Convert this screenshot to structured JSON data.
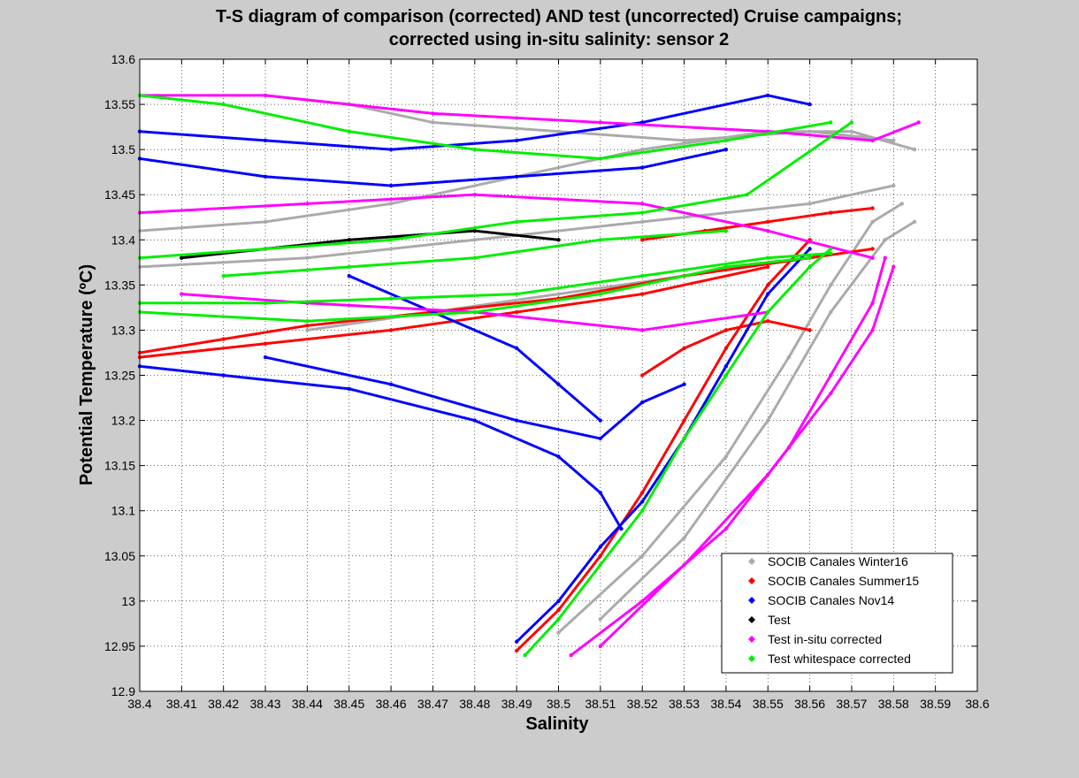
{
  "chart_data": {
    "type": "scatter",
    "title_lines": [
      "T-S diagram of comparison (corrected) AND test (uncorrected) Cruise campaigns;",
      "corrected using in-situ salinity: sensor 2"
    ],
    "xlabel": "Salinity",
    "ylabel": "Potential Temperature (ºC)",
    "xlim": [
      38.4,
      38.6
    ],
    "ylim": [
      12.9,
      13.6
    ],
    "xticks": [
      "38.4",
      "38.41",
      "38.42",
      "38.43",
      "38.44",
      "38.45",
      "38.46",
      "38.47",
      "38.48",
      "38.49",
      "38.5",
      "38.51",
      "38.52",
      "38.53",
      "38.54",
      "38.55",
      "38.56",
      "38.57",
      "38.58",
      "38.59",
      "38.6"
    ],
    "yticks": [
      "12.9",
      "12.95",
      "13",
      "13.05",
      "13.1",
      "13.15",
      "13.2",
      "13.25",
      "13.3",
      "13.35",
      "13.4",
      "13.45",
      "13.5",
      "13.55",
      "13.6"
    ],
    "grid": true,
    "legend_position": "bottom-right",
    "series": [
      {
        "name": "SOCIB Canales Winter16",
        "color": "#aaaaaa",
        "paths": [
          [
            [
              38.5,
              12.965
            ],
            [
              38.52,
              13.05
            ],
            [
              38.54,
              13.16
            ],
            [
              38.555,
              13.27
            ],
            [
              38.565,
              13.35
            ],
            [
              38.575,
              13.42
            ],
            [
              38.582,
              13.44
            ]
          ],
          [
            [
              38.51,
              12.98
            ],
            [
              38.53,
              13.07
            ],
            [
              38.55,
              13.2
            ],
            [
              38.565,
              13.32
            ],
            [
              38.578,
              13.4
            ],
            [
              38.585,
              13.42
            ]
          ],
          [
            [
              38.4,
              13.41
            ],
            [
              38.43,
              13.42
            ],
            [
              38.46,
              13.44
            ],
            [
              38.49,
              13.47
            ],
            [
              38.52,
              13.5
            ],
            [
              38.55,
              13.52
            ],
            [
              38.57,
              13.52
            ],
            [
              38.585,
              13.5
            ]
          ],
          [
            [
              38.4,
              13.37
            ],
            [
              38.44,
              13.38
            ],
            [
              38.48,
              13.4
            ],
            [
              38.52,
              13.42
            ],
            [
              38.56,
              13.44
            ],
            [
              38.58,
              13.46
            ]
          ],
          [
            [
              38.43,
              13.56
            ],
            [
              38.45,
              13.55
            ],
            [
              38.47,
              13.53
            ],
            [
              38.5,
              13.52
            ],
            [
              38.53,
              13.51
            ],
            [
              38.56,
              13.52
            ],
            [
              38.58,
              13.51
            ]
          ],
          [
            [
              38.44,
              13.3
            ],
            [
              38.47,
              13.32
            ],
            [
              38.5,
              13.34
            ],
            [
              38.53,
              13.36
            ],
            [
              38.56,
              13.38
            ]
          ]
        ]
      },
      {
        "name": "SOCIB Canales Summer15",
        "color": "#ff0000",
        "paths": [
          [
            [
              38.4,
              13.275
            ],
            [
              38.42,
              13.29
            ],
            [
              38.44,
              13.305
            ],
            [
              38.47,
              13.32
            ],
            [
              38.5,
              13.335
            ],
            [
              38.53,
              13.36
            ],
            [
              38.56,
              13.38
            ],
            [
              38.575,
              13.39
            ]
          ],
          [
            [
              38.4,
              13.27
            ],
            [
              38.43,
              13.285
            ],
            [
              38.46,
              13.3
            ],
            [
              38.49,
              13.32
            ],
            [
              38.52,
              13.34
            ],
            [
              38.55,
              13.37
            ]
          ],
          [
            [
              38.49,
              12.945
            ],
            [
              38.5,
              12.99
            ],
            [
              38.51,
              13.05
            ],
            [
              38.52,
              13.12
            ],
            [
              38.53,
              13.2
            ],
            [
              38.54,
              13.28
            ],
            [
              38.55,
              13.35
            ],
            [
              38.56,
              13.4
            ]
          ],
          [
            [
              38.52,
              13.4
            ],
            [
              38.535,
              13.41
            ],
            [
              38.55,
              13.42
            ],
            [
              38.565,
              13.43
            ],
            [
              38.575,
              13.435
            ]
          ],
          [
            [
              38.52,
              13.25
            ],
            [
              38.53,
              13.28
            ],
            [
              38.54,
              13.3
            ],
            [
              38.55,
              13.31
            ],
            [
              38.56,
              13.3
            ]
          ]
        ]
      },
      {
        "name": "SOCIB Canales Nov14",
        "color": "#0000ff",
        "paths": [
          [
            [
              38.4,
              13.52
            ],
            [
              38.43,
              13.51
            ],
            [
              38.46,
              13.5
            ],
            [
              38.49,
              13.51
            ],
            [
              38.52,
              13.53
            ],
            [
              38.55,
              13.56
            ],
            [
              38.56,
              13.55
            ]
          ],
          [
            [
              38.4,
              13.26
            ],
            [
              38.42,
              13.25
            ],
            [
              38.45,
              13.235
            ],
            [
              38.48,
              13.2
            ],
            [
              38.5,
              13.16
            ],
            [
              38.51,
              13.12
            ],
            [
              38.515,
              13.08
            ]
          ],
          [
            [
              38.49,
              12.955
            ],
            [
              38.5,
              13.0
            ],
            [
              38.51,
              13.06
            ],
            [
              38.52,
              13.11
            ],
            [
              38.53,
              13.18
            ],
            [
              38.54,
              13.26
            ],
            [
              38.55,
              13.34
            ],
            [
              38.56,
              13.39
            ]
          ],
          [
            [
              38.43,
              13.27
            ],
            [
              38.46,
              13.24
            ],
            [
              38.49,
              13.2
            ],
            [
              38.51,
              13.18
            ],
            [
              38.52,
              13.22
            ],
            [
              38.53,
              13.24
            ]
          ],
          [
            [
              38.4,
              13.49
            ],
            [
              38.43,
              13.47
            ],
            [
              38.46,
              13.46
            ],
            [
              38.49,
              13.47
            ],
            [
              38.52,
              13.48
            ],
            [
              38.54,
              13.5
            ]
          ],
          [
            [
              38.45,
              13.36
            ],
            [
              38.47,
              13.32
            ],
            [
              38.49,
              13.28
            ],
            [
              38.5,
              13.24
            ],
            [
              38.51,
              13.2
            ]
          ]
        ]
      },
      {
        "name": "Test",
        "color": "#000000",
        "paths": [
          [
            [
              38.41,
              13.38
            ],
            [
              38.43,
              13.39
            ],
            [
              38.45,
              13.4
            ],
            [
              38.48,
              13.41
            ],
            [
              38.5,
              13.4
            ]
          ]
        ]
      },
      {
        "name": "Test in-situ corrected",
        "color": "#ff00ff",
        "paths": [
          [
            [
              38.503,
              12.94
            ],
            [
              38.52,
              13.0
            ],
            [
              38.54,
              13.08
            ],
            [
              38.555,
              13.17
            ],
            [
              38.565,
              13.25
            ],
            [
              38.575,
              13.33
            ],
            [
              38.578,
              13.38
            ]
          ],
          [
            [
              38.51,
              12.95
            ],
            [
              38.53,
              13.04
            ],
            [
              38.55,
              13.14
            ],
            [
              38.565,
              13.23
            ],
            [
              38.575,
              13.3
            ],
            [
              38.58,
              13.37
            ]
          ],
          [
            [
              38.4,
              13.56
            ],
            [
              38.43,
              13.56
            ],
            [
              38.47,
              13.54
            ],
            [
              38.51,
              13.53
            ],
            [
              38.55,
              13.52
            ],
            [
              38.575,
              13.51
            ],
            [
              38.586,
              13.53
            ]
          ],
          [
            [
              38.4,
              13.43
            ],
            [
              38.44,
              13.44
            ],
            [
              38.48,
              13.45
            ],
            [
              38.52,
              13.44
            ],
            [
              38.55,
              13.41
            ],
            [
              38.575,
              13.38
            ]
          ],
          [
            [
              38.41,
              13.34
            ],
            [
              38.44,
              13.33
            ],
            [
              38.48,
              13.32
            ],
            [
              38.52,
              13.3
            ],
            [
              38.55,
              13.32
            ]
          ]
        ]
      },
      {
        "name": "Test whitespace corrected",
        "color": "#00ee00",
        "paths": [
          [
            [
              38.492,
              12.94
            ],
            [
              38.5,
              12.98
            ],
            [
              38.51,
              13.04
            ],
            [
              38.52,
              13.1
            ],
            [
              38.53,
              13.18
            ],
            [
              38.54,
              13.25
            ],
            [
              38.55,
              13.32
            ],
            [
              38.56,
              13.37
            ],
            [
              38.565,
              13.39
            ]
          ],
          [
            [
              38.4,
              13.33
            ],
            [
              38.43,
              13.33
            ],
            [
              38.46,
              13.335
            ],
            [
              38.49,
              13.34
            ],
            [
              38.52,
              13.36
            ],
            [
              38.55,
              13.38
            ],
            [
              38.565,
              13.385
            ]
          ],
          [
            [
              38.4,
              13.32
            ],
            [
              38.44,
              13.31
            ],
            [
              38.48,
              13.32
            ],
            [
              38.51,
              13.34
            ],
            [
              38.54,
              13.37
            ],
            [
              38.56,
              13.38
            ]
          ],
          [
            [
              38.4,
              13.56
            ],
            [
              38.42,
              13.55
            ],
            [
              38.45,
              13.52
            ],
            [
              38.48,
              13.5
            ],
            [
              38.51,
              13.49
            ],
            [
              38.54,
              13.51
            ],
            [
              38.565,
              13.53
            ]
          ],
          [
            [
              38.4,
              13.38
            ],
            [
              38.43,
              13.39
            ],
            [
              38.46,
              13.4
            ],
            [
              38.49,
              13.42
            ],
            [
              38.52,
              13.43
            ],
            [
              38.545,
              13.45
            ],
            [
              38.57,
              13.53
            ]
          ],
          [
            [
              38.42,
              13.36
            ],
            [
              38.45,
              13.37
            ],
            [
              38.48,
              13.38
            ],
            [
              38.51,
              13.4
            ],
            [
              38.54,
              13.41
            ]
          ]
        ]
      }
    ]
  }
}
